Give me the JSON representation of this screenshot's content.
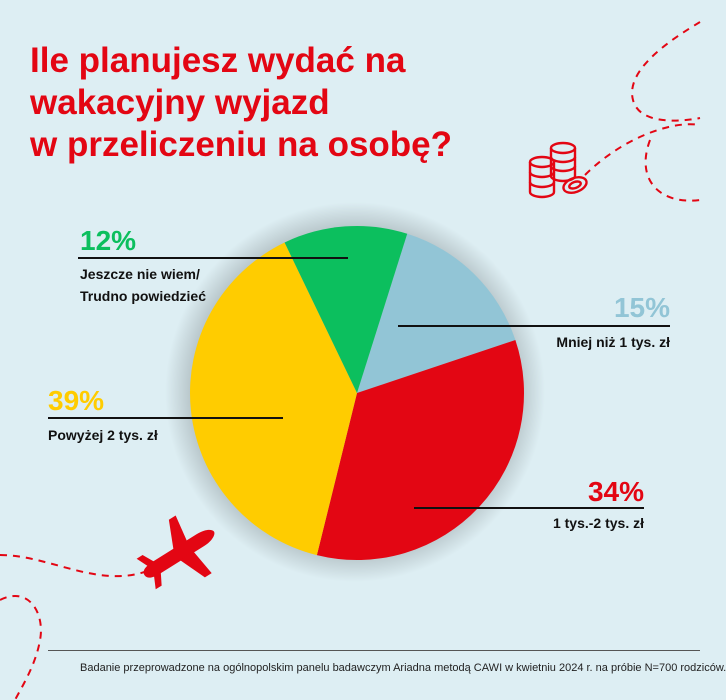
{
  "title_lines": [
    "Ile planujesz wydać na",
    "wakacyjny wyjazd",
    "w przeliczeniu na osobę?"
  ],
  "chart_data": {
    "type": "pie",
    "slices": [
      {
        "label": "Mniej niż 1 tys. zł",
        "value": 15,
        "value_label": "15%",
        "color": "#92c5d6",
        "label_color": "#92c5d6"
      },
      {
        "label": "1 tys.-2 tys. zł",
        "value": 34,
        "value_label": "34%",
        "color": "#e30613",
        "label_color": "#e30613"
      },
      {
        "label": "Powyżej 2 tys. zł",
        "value": 39,
        "value_label": "39%",
        "color": "#ffcc00",
        "label_color": "#ffcc00"
      },
      {
        "label": "Jeszcze nie wiem/ Trudno powiedzieć",
        "label_lines": [
          "Jeszcze nie wiem/",
          "Trudno powiedzieć"
        ],
        "value": 12,
        "value_label": "12%",
        "color": "#0cbf5e",
        "label_color": "#0cbf5e"
      }
    ]
  },
  "icons": [
    "coins-icon",
    "airplane-icon",
    "dashed-route-decoration"
  ],
  "footer": "Badanie przeprowadzone na ogólnopolskim panelu badawczym Ariadna metodą CAWI w kwietniu 2024 r. na próbie N=700 rodziców."
}
